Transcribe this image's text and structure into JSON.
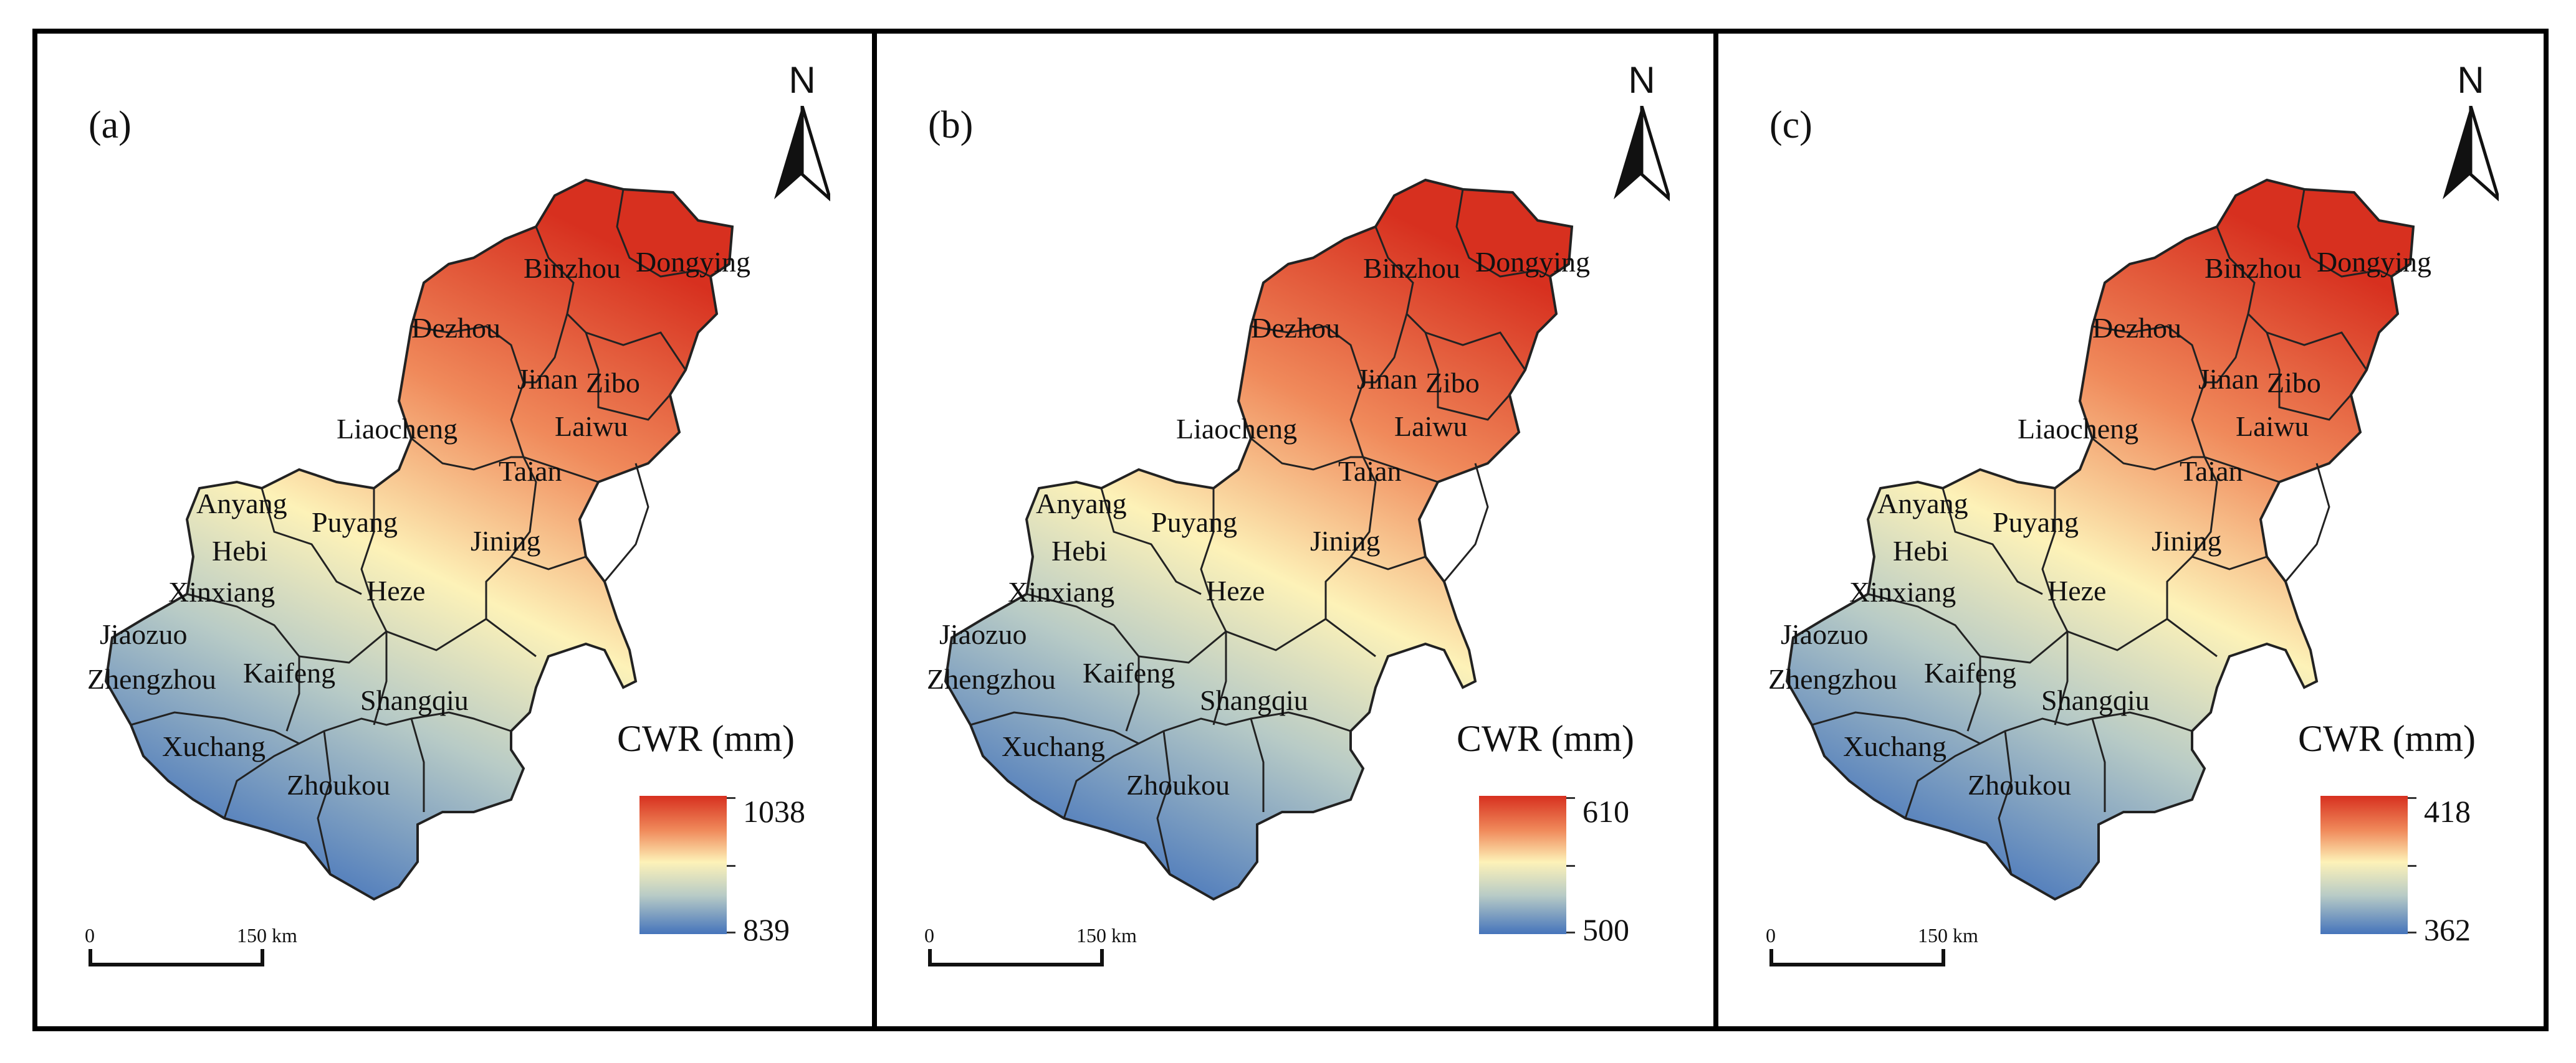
{
  "colors": {
    "high": "#d7301f",
    "mid_high": "#f08a5b",
    "mid": "#fdf2b8",
    "mid_low": "#b8cbc6",
    "low": "#4574bb",
    "border": "#222222"
  },
  "north_arrow": {
    "letter": "N",
    "icon": "north-arrow-icon"
  },
  "scale": {
    "zero": "0",
    "end": "150 km"
  },
  "legend_title": "CWR (mm)",
  "city_labels": [
    "Binzhou",
    "Dongying",
    "Dezhou",
    "Jinan",
    "Zibo",
    "Laiwu",
    "Liaocheng",
    "Taian",
    "Anyang",
    "Puyang",
    "Hebi",
    "Jining",
    "Xinxiang",
    "Heze",
    "Jiaozuo",
    "Zhengzhou",
    "Kaifeng",
    "Shangqiu",
    "Xuchang",
    "Zhoukou"
  ],
  "panels": [
    {
      "label": "(a)",
      "legend_max": "1038",
      "legend_min": "839"
    },
    {
      "label": "(b)",
      "legend_max": "610",
      "legend_min": "500"
    },
    {
      "label": "(c)",
      "legend_max": "418",
      "legend_min": "362"
    }
  ]
}
